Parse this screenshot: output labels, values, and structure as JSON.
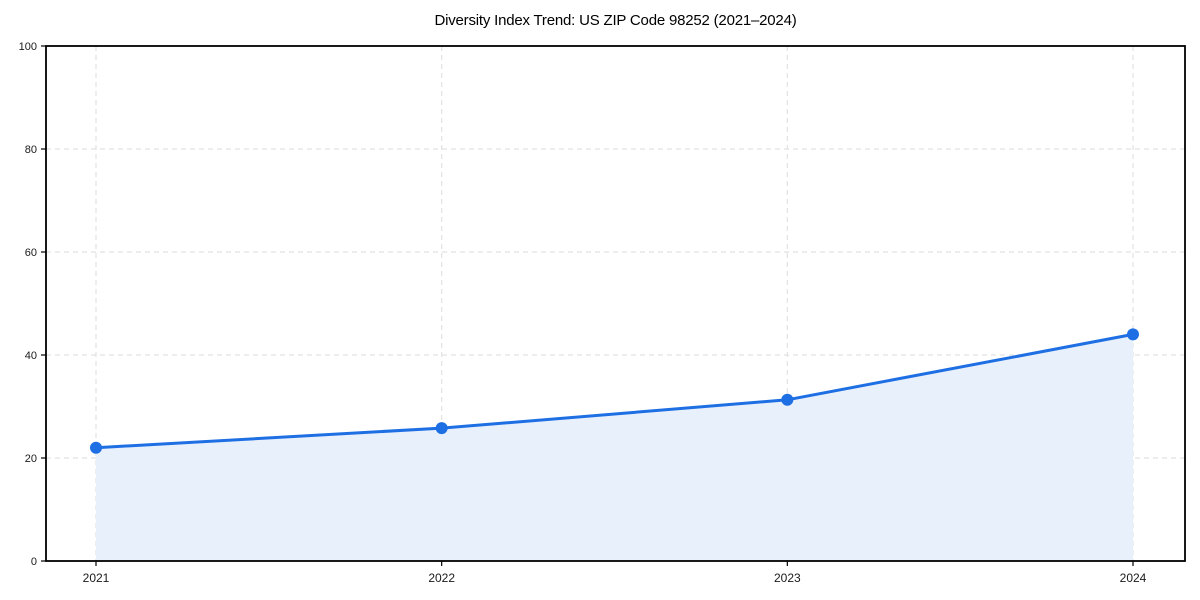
{
  "page": {
    "background": "#ffffff"
  },
  "chart_data": {
    "type": "area",
    "title": "Diversity Index Trend: US ZIP Code 98252 (2021–2024)",
    "categories": [
      "2021",
      "2022",
      "2023",
      "2024"
    ],
    "series": [
      {
        "name": "Diversity Index",
        "values": [
          22,
          25.8,
          31.3,
          44
        ]
      }
    ],
    "xlabel": "",
    "ylabel": "",
    "ylim": [
      0,
      100
    ],
    "yticks": [
      0,
      20,
      40,
      60,
      80,
      100
    ],
    "grid": true,
    "grid_style": "dashed",
    "legend_position": "none",
    "marker": "circle",
    "colors": {
      "line": "#1e6fe3",
      "marker": "#1e6fe3",
      "area_fill": "#e8f0fc",
      "grid": "#e2e2e2",
      "frame": "#000000",
      "tick_label": "#1a1a1a",
      "title": "#000000",
      "background": "#ffffff"
    }
  }
}
